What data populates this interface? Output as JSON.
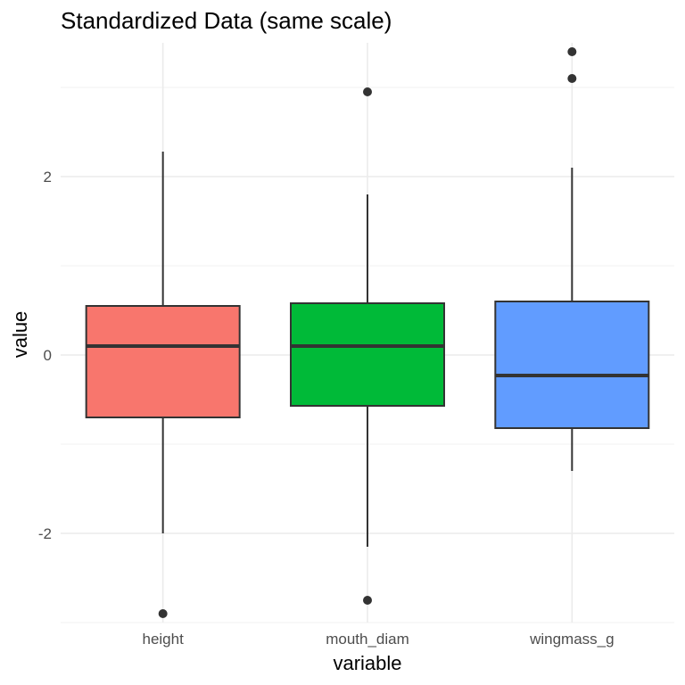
{
  "chart_data": {
    "type": "boxplot",
    "title": "Standardized Data (same scale)",
    "xlabel": "variable",
    "ylabel": "value",
    "ylim": [
      -3,
      3.5
    ],
    "y_ticks": [
      -2,
      0,
      2
    ],
    "y_tick_labels": [
      "-2",
      "0",
      "2"
    ],
    "grid": true,
    "categories": [
      "height",
      "mouth_diam",
      "wingmass_g"
    ],
    "boxes": [
      {
        "name": "height",
        "color": "#F8766D",
        "q1": -0.7,
        "median": 0.1,
        "q3": 0.55,
        "whisker_low": -2.0,
        "whisker_high": 2.28,
        "outliers": [
          -2.9
        ]
      },
      {
        "name": "mouth_diam",
        "color": "#00BA38",
        "q1": -0.57,
        "median": 0.1,
        "q3": 0.58,
        "whisker_low": -2.15,
        "whisker_high": 1.8,
        "outliers": [
          2.95,
          -2.75
        ]
      },
      {
        "name": "wingmass_g",
        "color": "#619CFF",
        "q1": -0.82,
        "median": -0.23,
        "q3": 0.6,
        "whisker_low": -1.3,
        "whisker_high": 2.1,
        "outliers": [
          3.4,
          3.1
        ]
      }
    ]
  }
}
